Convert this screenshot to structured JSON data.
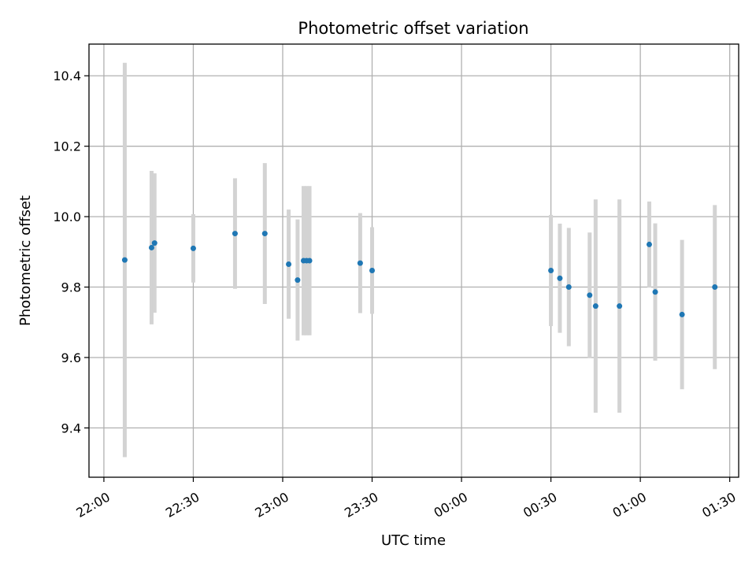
{
  "chart_data": {
    "type": "scatter",
    "title": "Photometric offset variation",
    "xlabel": "UTC time",
    "ylabel": "Photometric offset",
    "x_ticks": [
      "22:00",
      "22:30",
      "23:00",
      "23:30",
      "00:00",
      "00:30",
      "01:00",
      "01:30"
    ],
    "y_ticks": [
      "9.4",
      "9.6",
      "9.8",
      "10.0",
      "10.2",
      "10.4"
    ],
    "xlim": [
      "21:55",
      "01:33"
    ],
    "ylim": [
      9.26,
      10.49
    ],
    "grid": true,
    "colors": {
      "points": "#1f77b4",
      "errorbars": "#d3d3d3",
      "grid": "#b0b0b0"
    },
    "points": [
      {
        "t": "22:07",
        "y": 9.877,
        "err": 0.56
      },
      {
        "t": "22:16",
        "y": 9.912,
        "err": 0.218
      },
      {
        "t": "22:17",
        "y": 9.925,
        "err": 0.198
      },
      {
        "t": "22:30",
        "y": 9.91,
        "err": 0.097
      },
      {
        "t": "22:44",
        "y": 9.952,
        "err": 0.157
      },
      {
        "t": "22:54",
        "y": 9.952,
        "err": 0.2
      },
      {
        "t": "23:02",
        "y": 9.865,
        "err": 0.155
      },
      {
        "t": "23:05",
        "y": 9.82,
        "err": 0.172
      },
      {
        "t": "23:07",
        "y": 9.875,
        "err": 0.212
      },
      {
        "t": "23:08",
        "y": 9.875,
        "err": 0.212
      },
      {
        "t": "23:09",
        "y": 9.875,
        "err": 0.212
      },
      {
        "t": "23:26",
        "y": 9.868,
        "err": 0.142
      },
      {
        "t": "23:30",
        "y": 9.847,
        "err": 0.123
      },
      {
        "t": "00:30",
        "y": 9.847,
        "err": 0.158
      },
      {
        "t": "00:33",
        "y": 9.825,
        "err": 0.155
      },
      {
        "t": "00:36",
        "y": 9.8,
        "err": 0.168
      },
      {
        "t": "00:43",
        "y": 9.777,
        "err": 0.178
      },
      {
        "t": "00:45",
        "y": 9.746,
        "err": 0.303
      },
      {
        "t": "00:53",
        "y": 9.746,
        "err": 0.303
      },
      {
        "t": "01:03",
        "y": 9.921,
        "err": 0.122
      },
      {
        "t": "01:05",
        "y": 9.786,
        "err": 0.195
      },
      {
        "t": "01:14",
        "y": 9.722,
        "err": 0.212
      },
      {
        "t": "01:25",
        "y": 9.8,
        "err": 0.233
      }
    ]
  }
}
